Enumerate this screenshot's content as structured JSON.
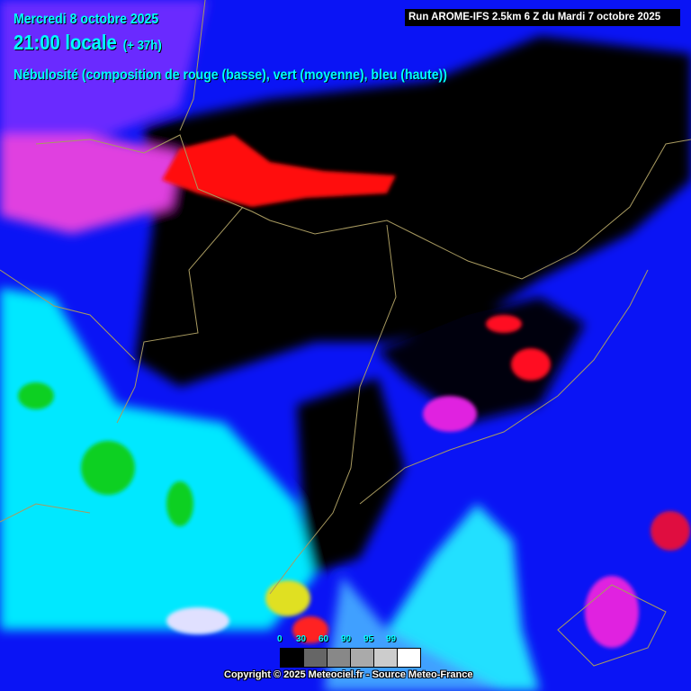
{
  "header": {
    "date": "Mercredi 8 octobre 2025",
    "time": "21:00 locale",
    "lead": "(+ 37h)",
    "title": "Nébulosité (composition de rouge (basse), vert (moyenne), bleu (haute))",
    "run": "Run AROME-IFS 2.5km 6 Z du Mardi 7 octobre 2025"
  },
  "legend": {
    "labels": [
      "0",
      "30",
      "60",
      "90",
      "95",
      "99"
    ],
    "colors": [
      "#000000",
      "#666666",
      "#888888",
      "#aaaaaa",
      "#cccccc",
      "#ffffff"
    ]
  },
  "footer": {
    "copyright": "Copyright © 2025 Meteociel.fr - Source Meteo-France"
  },
  "colors": {
    "high_cloud": "#0a14f5",
    "low_cloud": "#ff0000",
    "mid_cloud": "#00ff00",
    "clear": "#000000",
    "text": "#00ffff"
  }
}
